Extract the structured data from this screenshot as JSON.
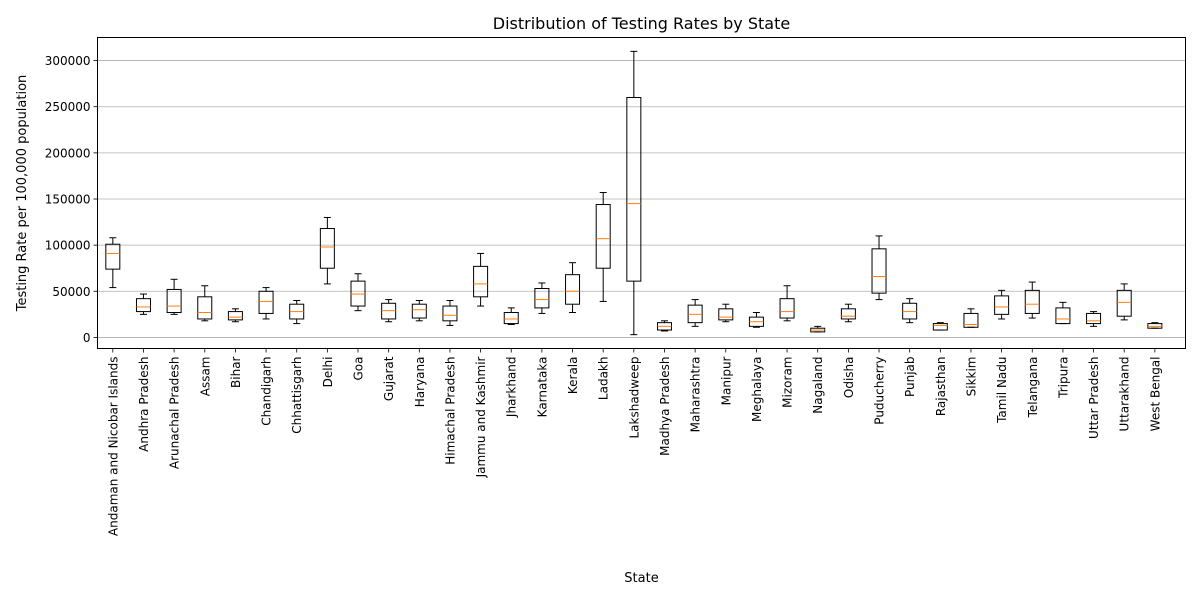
{
  "chart_data": {
    "type": "box",
    "title": "Distribution of Testing Rates by State",
    "xlabel": "State",
    "ylabel": "Testing Rate per 100,000 population",
    "ylim": [
      -12000,
      325000
    ],
    "yticks": [
      0,
      50000,
      100000,
      150000,
      200000,
      250000,
      300000
    ],
    "ytick_labels": [
      "0",
      "50000",
      "100000",
      "150000",
      "200000",
      "250000",
      "300000"
    ],
    "grid": "horizontal",
    "colors": {
      "box": "#000000",
      "median": "#ff7f0e",
      "grid": "#b0b0b0"
    },
    "categories": [
      "Andaman and Nicobar Islands",
      "Andhra Pradesh",
      "Arunachal Pradesh",
      "Assam",
      "Bihar",
      "Chandigarh",
      "Chhattisgarh",
      "Delhi",
      "Goa",
      "Gujarat",
      "Haryana",
      "Himachal Pradesh",
      "Jammu and Kashmir",
      "Jharkhand",
      "Karnataka",
      "Kerala",
      "Ladakh",
      "Lakshadweep",
      "Madhya Pradesh",
      "Maharashtra",
      "Manipur",
      "Meghalaya",
      "Mizoram",
      "Nagaland",
      "Odisha",
      "Puducherry",
      "Punjab",
      "Rajasthan",
      "Sikkim",
      "Tamil Nadu",
      "Telangana",
      "Tripura",
      "Uttar Pradesh",
      "Uttarakhand",
      "West Bengal"
    ],
    "boxes": [
      {
        "whislo": 54000,
        "q1": 74000,
        "med": 91000,
        "q3": 101000,
        "whishi": 108000
      },
      {
        "whislo": 25000,
        "q1": 28000,
        "med": 33000,
        "q3": 42000,
        "whishi": 47000
      },
      {
        "whislo": 25000,
        "q1": 27000,
        "med": 34000,
        "q3": 52000,
        "whishi": 63000
      },
      {
        "whislo": 18000,
        "q1": 20000,
        "med": 27000,
        "q3": 44000,
        "whishi": 56000
      },
      {
        "whislo": 17000,
        "q1": 19000,
        "med": 22000,
        "q3": 28000,
        "whishi": 31000
      },
      {
        "whislo": 20000,
        "q1": 26000,
        "med": 39000,
        "q3": 50000,
        "whishi": 54000
      },
      {
        "whislo": 15000,
        "q1": 20000,
        "med": 28000,
        "q3": 36000,
        "whishi": 40000
      },
      {
        "whislo": 58000,
        "q1": 75000,
        "med": 98000,
        "q3": 118000,
        "whishi": 130000
      },
      {
        "whislo": 29000,
        "q1": 34000,
        "med": 47000,
        "q3": 61000,
        "whishi": 69000
      },
      {
        "whislo": 17000,
        "q1": 20000,
        "med": 29000,
        "q3": 37000,
        "whishi": 41000
      },
      {
        "whislo": 18000,
        "q1": 21000,
        "med": 30000,
        "q3": 36000,
        "whishi": 40000
      },
      {
        "whislo": 13000,
        "q1": 18000,
        "med": 24000,
        "q3": 34000,
        "whishi": 40000
      },
      {
        "whislo": 34000,
        "q1": 44000,
        "med": 58000,
        "q3": 77000,
        "whishi": 91000
      },
      {
        "whislo": 14000,
        "q1": 15000,
        "med": 20000,
        "q3": 27000,
        "whishi": 32000
      },
      {
        "whislo": 26000,
        "q1": 32000,
        "med": 41000,
        "q3": 53000,
        "whishi": 59000
      },
      {
        "whislo": 27000,
        "q1": 36000,
        "med": 50000,
        "q3": 68000,
        "whishi": 81000
      },
      {
        "whislo": 39000,
        "q1": 75000,
        "med": 107000,
        "q3": 144000,
        "whishi": 157000
      },
      {
        "whislo": 3000,
        "q1": 61000,
        "med": 145000,
        "q3": 260000,
        "whishi": 310000
      },
      {
        "whislo": 7000,
        "q1": 8000,
        "med": 12000,
        "q3": 16000,
        "whishi": 18000
      },
      {
        "whislo": 12000,
        "q1": 16000,
        "med": 25000,
        "q3": 35000,
        "whishi": 41000
      },
      {
        "whislo": 17000,
        "q1": 19000,
        "med": 22000,
        "q3": 31000,
        "whishi": 36000
      },
      {
        "whislo": 11000,
        "q1": 12000,
        "med": 17000,
        "q3": 22000,
        "whishi": 27000
      },
      {
        "whislo": 18000,
        "q1": 21000,
        "med": 28000,
        "q3": 42000,
        "whishi": 56000
      },
      {
        "whislo": 6000,
        "q1": 6000,
        "med": 8000,
        "q3": 10000,
        "whishi": 12000
      },
      {
        "whislo": 17000,
        "q1": 20000,
        "med": 23000,
        "q3": 31000,
        "whishi": 36000
      },
      {
        "whislo": 41000,
        "q1": 48000,
        "med": 66000,
        "q3": 96000,
        "whishi": 110000
      },
      {
        "whislo": 16000,
        "q1": 20000,
        "med": 28000,
        "q3": 37000,
        "whishi": 42000
      },
      {
        "whislo": 8000,
        "q1": 8000,
        "med": 13000,
        "q3": 15000,
        "whishi": 16000
      },
      {
        "whislo": 11000,
        "q1": 11000,
        "med": 14000,
        "q3": 26000,
        "whishi": 31000
      },
      {
        "whislo": 20000,
        "q1": 25000,
        "med": 33000,
        "q3": 45000,
        "whishi": 51000
      },
      {
        "whislo": 21000,
        "q1": 26000,
        "med": 36000,
        "q3": 51000,
        "whishi": 60000
      },
      {
        "whislo": 15000,
        "q1": 15000,
        "med": 20000,
        "q3": 32000,
        "whishi": 38000
      },
      {
        "whislo": 12000,
        "q1": 15000,
        "med": 18000,
        "q3": 26000,
        "whishi": 28000
      },
      {
        "whislo": 19000,
        "q1": 23000,
        "med": 38000,
        "q3": 51000,
        "whishi": 58000
      },
      {
        "whislo": 10000,
        "q1": 10000,
        "med": 12000,
        "q3": 15000,
        "whishi": 16000
      }
    ]
  }
}
